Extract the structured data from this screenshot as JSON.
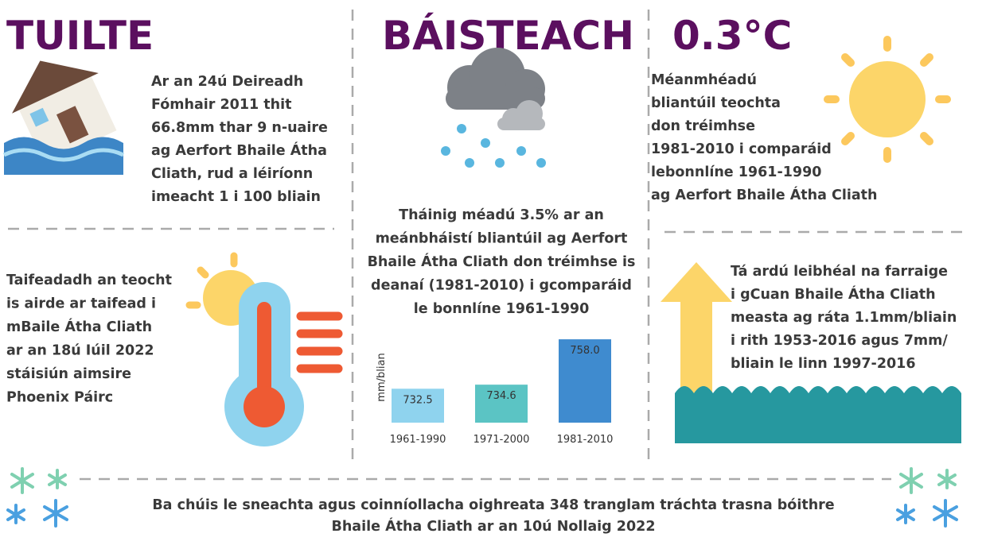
{
  "flood": {
    "title": "TUILTE",
    "lines": [
      "Ar an 24ú Deireadh",
      "Fómhair 2011 thit",
      "66.8mm thar 9 n-uaire",
      "ag Aerfort Bhaile Átha",
      "Cliath, rud a léiríonn",
      "imeacht 1 i 100 bliain"
    ]
  },
  "rain": {
    "title": "BÁISTEACH",
    "lines": [
      "Tháinig méadú 3.5% ar an",
      "meánbháistí  bliantúil ag Aerfort",
      "Bhaile Átha Cliath don tréimhse is",
      "deanaí (1981-2010) i gcomparáid",
      "le bonnlíne 1961-1990"
    ]
  },
  "temperature": {
    "title": "0.3°C",
    "lines": [
      "Méanmhéadú",
      "bliantúil teochta",
      "don tréimhse",
      "1981-2010 i comparáid",
      "lebonnlíne 1961-1990",
      "ag Aerfort Bhaile Átha Cliath"
    ]
  },
  "heat": {
    "lines": [
      "Taifeadadh an teocht",
      "is airde ar taifead i",
      "mBaile Átha Cliath",
      "ar an 18ú Iúil 2022",
      "stáisiún aimsire",
      "Phoenix Páirc"
    ]
  },
  "sea": {
    "lines": [
      "Tá ardú leibhéal na farraige",
      "i gCuan Bhaile Átha Cliath",
      "measta ag ráta 1.1mm/bliain",
      "i rith 1953-2016 agus 7mm/",
      "bliain le linn 1997-2016"
    ]
  },
  "snow": {
    "lines": [
      "Ba chúis le sneachta agus coinníollacha oighreata 348 tranglam tráchta trasna bóithre",
      "Bhaile Átha Cliath ar an 10ú Nollaig 2022"
    ]
  },
  "chart_data": {
    "type": "bar",
    "y_label": "mm/blian",
    "categories": [
      "1961-1990",
      "1971-2000",
      "1981-2010"
    ],
    "values": [
      732.5,
      734.6,
      758.0
    ],
    "value_labels": [
      "732.5",
      "734.6",
      "758.0"
    ],
    "colors": [
      "#8fd3ee",
      "#5bc4c4",
      "#3f8bcf"
    ],
    "ylim": [
      715,
      765
    ]
  }
}
